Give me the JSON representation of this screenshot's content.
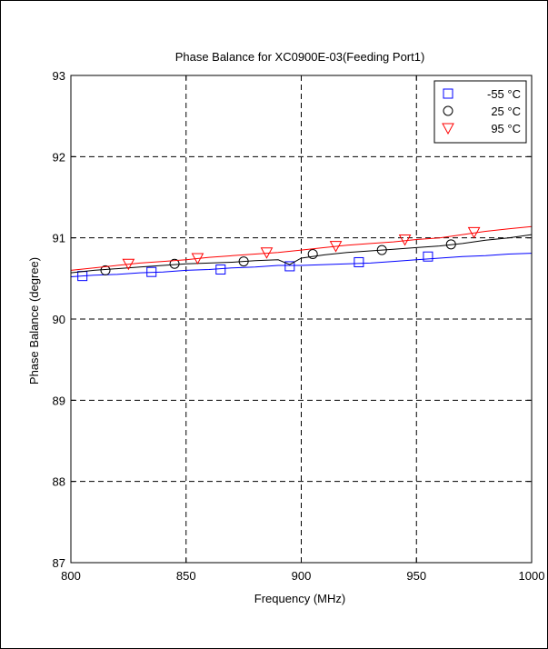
{
  "chart_data": {
    "type": "line",
    "title": "Phase Balance for XC0900E-03(Feeding Port1)",
    "xlabel": "Frequency (MHz)",
    "ylabel": "Phase Balance (degree)",
    "xlim": [
      800,
      1000
    ],
    "ylim": [
      87,
      93
    ],
    "xticks": [
      800,
      850,
      900,
      950,
      1000
    ],
    "yticks": [
      87,
      88,
      89,
      90,
      91,
      92,
      93
    ],
    "grid": true,
    "legend_position": "top-right",
    "series": [
      {
        "name": "-55 °C",
        "color": "#0000ff",
        "marker": "square",
        "x": [
          800,
          810,
          820,
          830,
          840,
          850,
          860,
          870,
          880,
          890,
          900,
          910,
          920,
          930,
          940,
          950,
          960,
          970,
          980,
          990,
          1000
        ],
        "y": [
          90.52,
          90.54,
          90.55,
          90.57,
          90.58,
          90.6,
          90.61,
          90.63,
          90.64,
          90.66,
          90.66,
          90.67,
          90.68,
          90.69,
          90.71,
          90.73,
          90.75,
          90.77,
          90.78,
          90.8,
          90.81
        ],
        "marker_x": [
          805,
          835,
          865,
          895,
          925,
          955
        ],
        "marker_y": [
          90.53,
          90.58,
          90.61,
          90.65,
          90.7,
          90.77
        ]
      },
      {
        "name": "25 °C",
        "color": "#000000",
        "marker": "circle",
        "x": [
          800,
          810,
          820,
          830,
          840,
          850,
          860,
          870,
          880,
          890,
          895,
          900,
          910,
          920,
          930,
          940,
          950,
          960,
          970,
          980,
          990,
          1000
        ],
        "y": [
          90.57,
          90.6,
          90.62,
          90.64,
          90.66,
          90.68,
          90.69,
          90.7,
          90.72,
          90.73,
          90.67,
          90.75,
          90.79,
          90.82,
          90.84,
          90.86,
          90.88,
          90.9,
          90.93,
          90.97,
          91.0,
          91.04
        ],
        "marker_x": [
          815,
          845,
          875,
          905,
          935,
          965
        ],
        "marker_y": [
          90.6,
          90.68,
          90.71,
          90.8,
          90.85,
          90.92
        ]
      },
      {
        "name": "95 °C",
        "color": "#ff0000",
        "marker": "triangle-down",
        "x": [
          800,
          810,
          820,
          830,
          840,
          850,
          860,
          870,
          880,
          890,
          900,
          910,
          920,
          930,
          940,
          950,
          960,
          970,
          980,
          990,
          1000
        ],
        "y": [
          90.6,
          90.63,
          90.66,
          90.69,
          90.71,
          90.73,
          90.76,
          90.78,
          90.8,
          90.82,
          90.85,
          90.88,
          90.91,
          90.93,
          90.95,
          90.98,
          91.0,
          91.04,
          91.08,
          91.11,
          91.14
        ],
        "marker_x": [
          825,
          855,
          885,
          915,
          945,
          975
        ],
        "marker_y": [
          90.68,
          90.75,
          90.82,
          90.9,
          90.98,
          91.07
        ]
      }
    ]
  }
}
